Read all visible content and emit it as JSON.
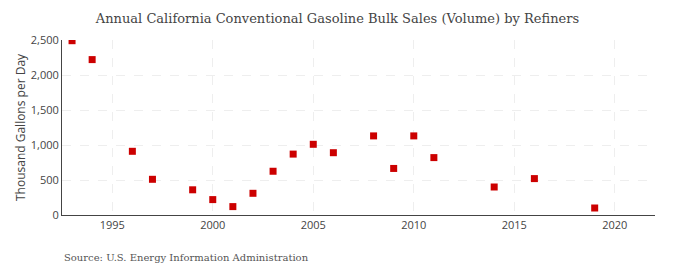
{
  "chart_data": {
    "type": "scatter",
    "title": "Annual California Conventional Gasoline Bulk Sales (Volume) by Refiners",
    "ylabel": "Thousand Gallons per Day",
    "source": "Source: U.S. Energy Information Administration",
    "x": [
      1993,
      1994,
      1996,
      1997,
      1999,
      2000,
      2001,
      2002,
      2003,
      2004,
      2005,
      2006,
      2008,
      2009,
      2010,
      2011,
      2014,
      2016,
      2019
    ],
    "values": [
      2490,
      2220,
      910,
      510,
      360,
      220,
      120,
      310,
      625,
      870,
      1010,
      890,
      1130,
      665,
      1130,
      820,
      400,
      520,
      100
    ],
    "color": "#cc0000",
    "marker": "square",
    "xlim": [
      1992.5,
      2022
    ],
    "xticks": [
      1995,
      2000,
      2005,
      2010,
      2015,
      2020
    ],
    "ylim": [
      0,
      2500
    ],
    "yticks": [
      0,
      500,
      {
        "value": 1000,
        "label": "1,000"
      },
      {
        "value": 1500,
        "label": "1,500"
      },
      {
        "value": 2000,
        "label": "2,000"
      },
      {
        "value": 2500,
        "label": "2,500"
      }
    ],
    "grid": true
  }
}
